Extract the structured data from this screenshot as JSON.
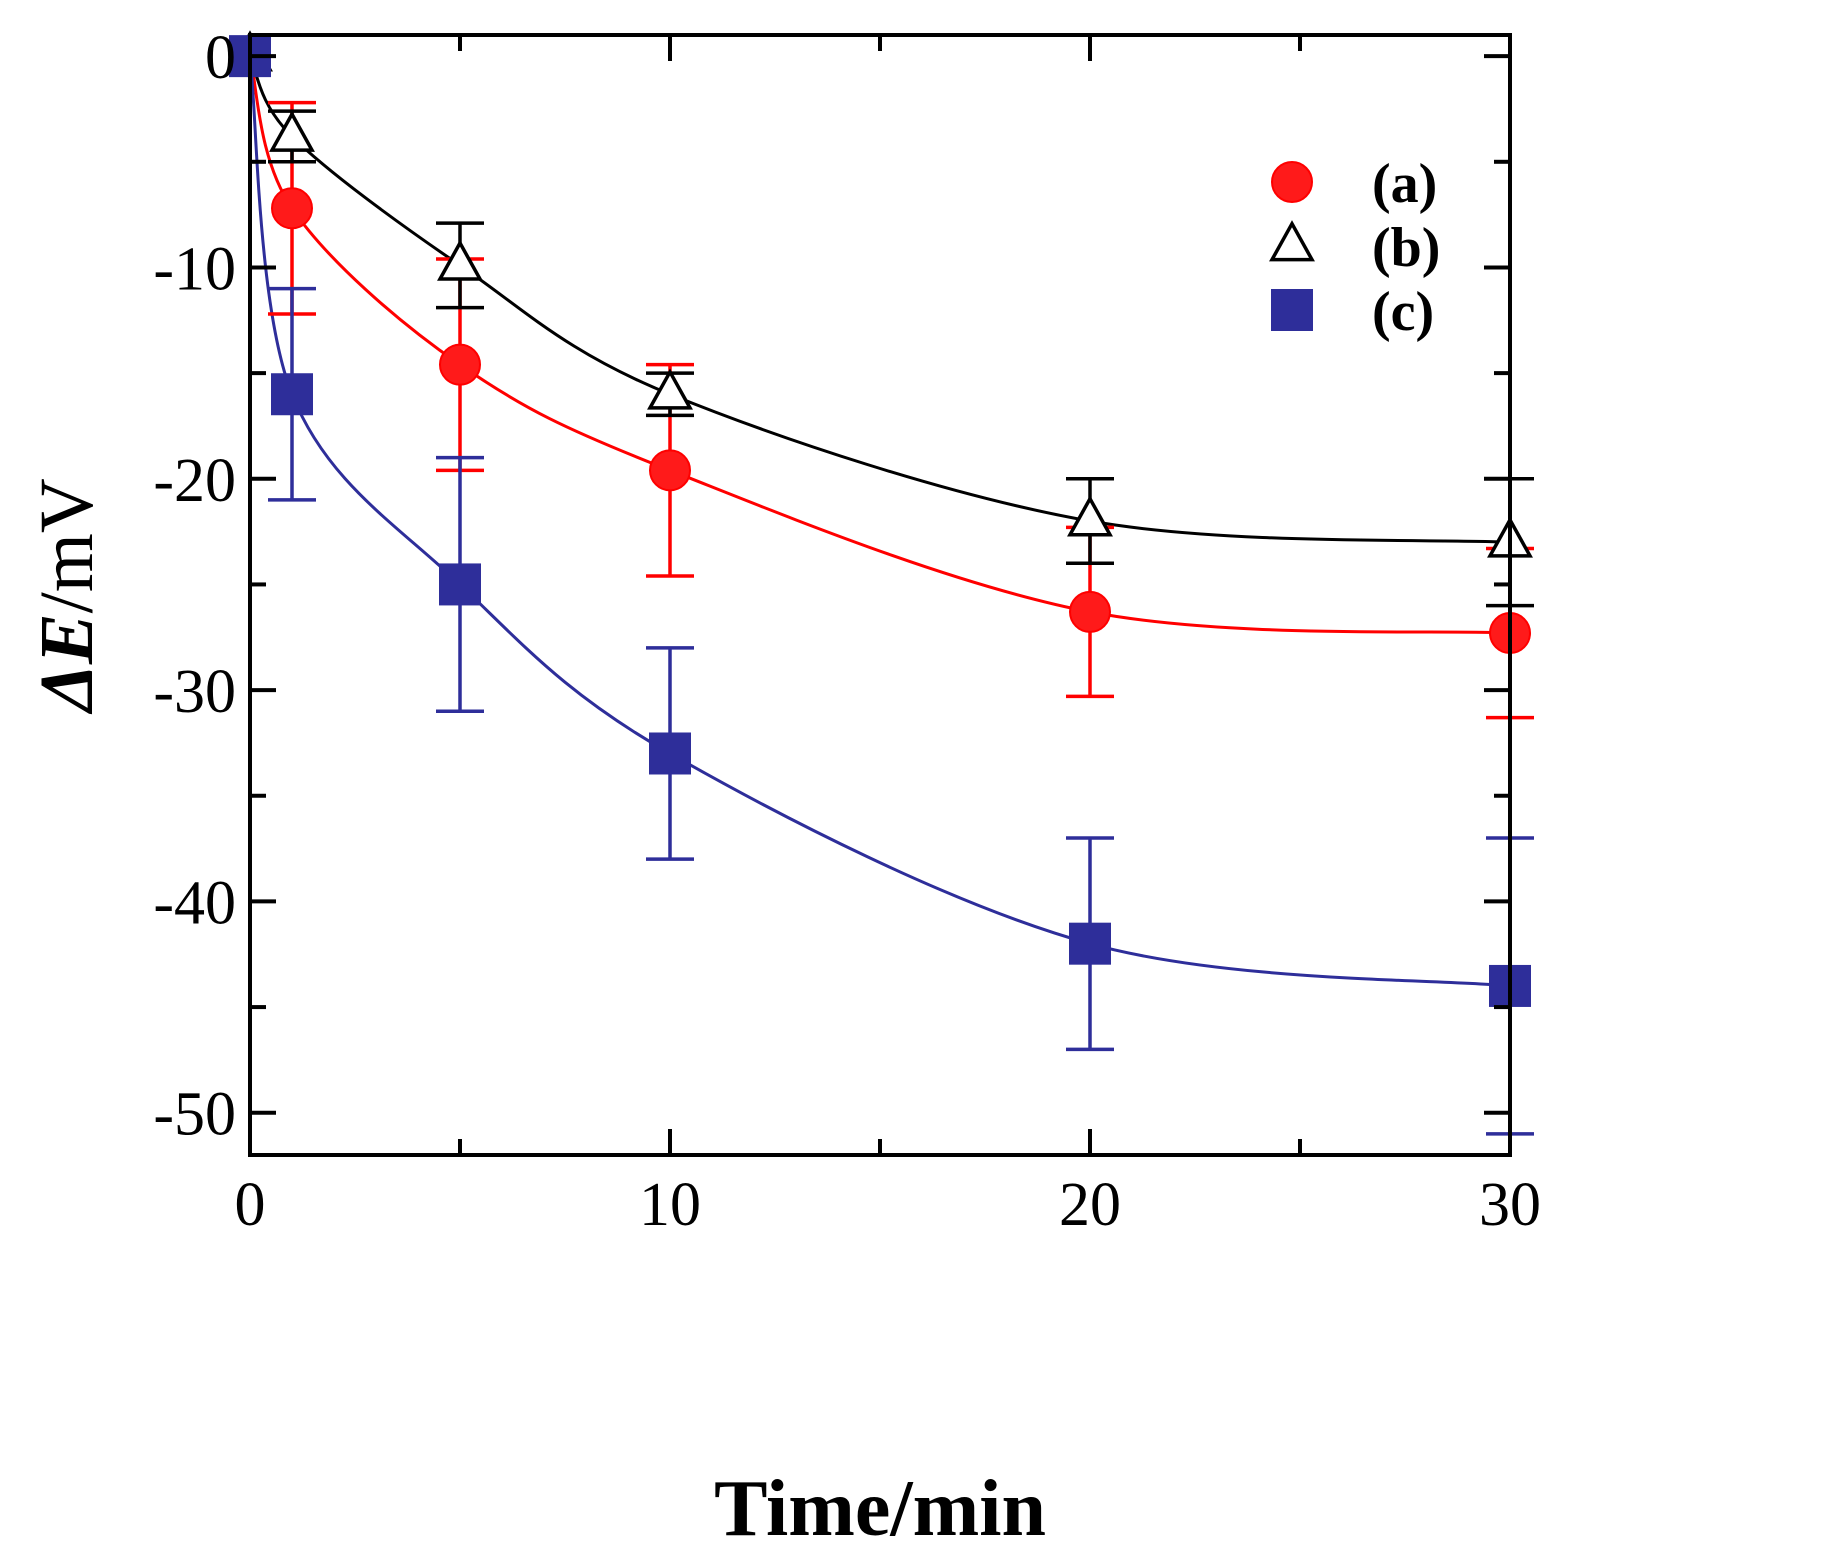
{
  "chart_data": {
    "type": "scatter",
    "xlabel": "Time/min",
    "ylabel_prefix": "Δ",
    "ylabel_var": "E",
    "ylabel_unit": "/mV",
    "xlim": [
      0,
      30
    ],
    "ylim": [
      -52,
      1
    ],
    "x_ticks": [
      0,
      10,
      20,
      30
    ],
    "x_tick_labels": [
      "0",
      "10",
      "20",
      "30"
    ],
    "x_minor_ticks": [
      5,
      15,
      25
    ],
    "y_ticks": [
      0,
      -10,
      -20,
      -30,
      -40,
      -50
    ],
    "y_tick_labels": [
      "0",
      "-10",
      "-20",
      "-30",
      "-40",
      "-50"
    ],
    "y_minor_ticks": [
      -5,
      -15,
      -25,
      -35,
      -45
    ],
    "grid": false,
    "legend_position": "top-right",
    "x": [
      0,
      1,
      5,
      10,
      20,
      30
    ],
    "series": [
      {
        "name": "(a)",
        "marker": "circle",
        "color": "#ff0000",
        "fill": "#ff1a1a",
        "values": [
          0,
          -7.2,
          -14.6,
          -19.6,
          -26.3,
          -27.3
        ],
        "errors": [
          0,
          5.0,
          5.0,
          5.0,
          4.0,
          4.0
        ]
      },
      {
        "name": "(b)",
        "marker": "triangle-open",
        "color": "#000000",
        "fill": "#ffffff",
        "values": [
          0,
          -3.8,
          -9.9,
          -16.0,
          -22.0,
          -23.0
        ],
        "errors": [
          0,
          1.2,
          2.0,
          1.0,
          2.0,
          3.0
        ]
      },
      {
        "name": "(c)",
        "marker": "square",
        "color": "#2e2e9a",
        "fill": "#2e2e9a",
        "values": [
          0,
          -16.0,
          -25.0,
          -33.0,
          -42.0,
          -44.0
        ],
        "errors": [
          0,
          5.0,
          6.0,
          5.0,
          5.0,
          7.0
        ]
      }
    ]
  }
}
